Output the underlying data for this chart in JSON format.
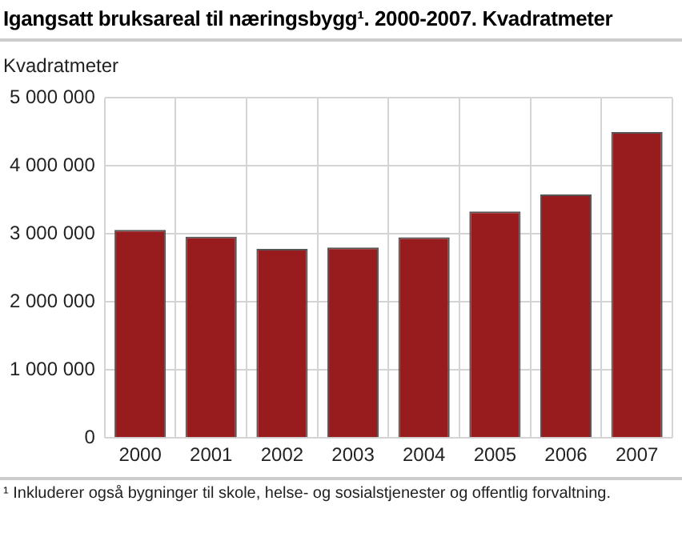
{
  "chart_data": {
    "type": "bar",
    "title": "Igangsatt bruksareal til næringsbygg¹. 2000-2007. Kvadratmeter",
    "ylabel": "Kvadratmeter",
    "categories": [
      "2000",
      "2001",
      "2002",
      "2003",
      "2004",
      "2005",
      "2006",
      "2007"
    ],
    "values": [
      3060000,
      2960000,
      2780000,
      2800000,
      2950000,
      3330000,
      3580000,
      4500000
    ],
    "color": "#981b1e",
    "ylim": [
      0,
      5000000
    ],
    "yticks": [
      {
        "value": 0,
        "label": "0"
      },
      {
        "value": 1000000,
        "label": "1 000 000"
      },
      {
        "value": 2000000,
        "label": "2 000 000"
      },
      {
        "value": 3000000,
        "label": "3 000 000"
      },
      {
        "value": 4000000,
        "label": "4 000 000"
      },
      {
        "value": 5000000,
        "label": "5 000 000"
      }
    ],
    "grid": true,
    "annotations": [
      "¹ Inkluderer også bygninger til skole, helse- og sosialstjenester og offentlig forvaltning."
    ]
  }
}
